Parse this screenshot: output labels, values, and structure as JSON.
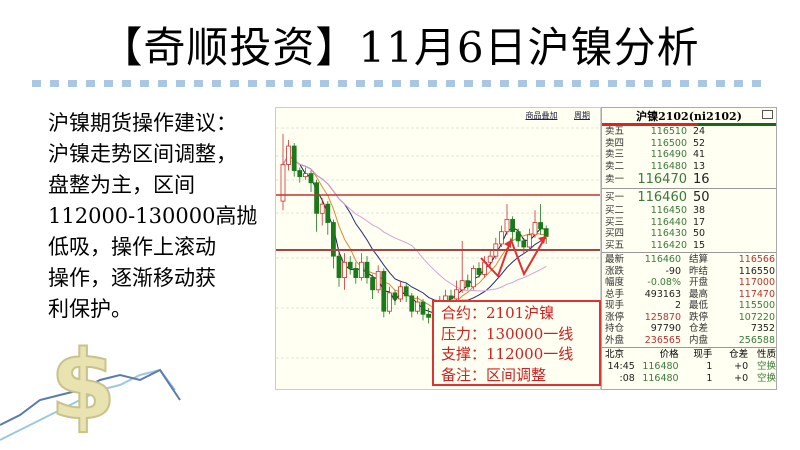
{
  "title": "【奇顺投资】11月6日沪镍分析",
  "advice": [
    "沪镍期货操作建议：",
    "沪镍走势区间调整，",
    "盘整为主，区间",
    "112000-130000高抛",
    "低吸，操作上滚动",
    "操作，逐渐移动获",
    "利保护。"
  ],
  "chart": {
    "links": [
      "商品叠加",
      "周期"
    ],
    "resistance": 130000,
    "support": 112000,
    "colors": {
      "up": "#d03030",
      "down": "#1a7a1a",
      "line": "#c83030"
    },
    "candles": [
      [
        128000,
        150000,
        125000,
        140000
      ],
      [
        140000,
        148000,
        138000,
        146000
      ],
      [
        146000,
        147000,
        136000,
        138000
      ],
      [
        138000,
        139000,
        134000,
        136000
      ],
      [
        136000,
        139000,
        135000,
        137000
      ],
      [
        137000,
        138000,
        131000,
        134000
      ],
      [
        134000,
        135000,
        118000,
        124000
      ],
      [
        124000,
        129000,
        120000,
        127000
      ],
      [
        127000,
        128000,
        117000,
        121000
      ],
      [
        121000,
        122000,
        106000,
        110000
      ],
      [
        110000,
        111000,
        100000,
        103000
      ],
      [
        103000,
        111000,
        99000,
        108000
      ],
      [
        108000,
        110000,
        104000,
        106000
      ],
      [
        106000,
        108000,
        101000,
        103000
      ],
      [
        103000,
        111000,
        102000,
        108000
      ],
      [
        108000,
        110000,
        101000,
        103000
      ],
      [
        103000,
        104000,
        96000,
        99000
      ],
      [
        99000,
        107000,
        98000,
        105000
      ],
      [
        105000,
        106000,
        90000,
        92000
      ],
      [
        92000,
        100000,
        91000,
        98000
      ],
      [
        98000,
        99000,
        94000,
        96000
      ],
      [
        96000,
        102000,
        95000,
        100000
      ],
      [
        100000,
        101000,
        95000,
        97000
      ],
      [
        97000,
        98000,
        90000,
        92000
      ],
      [
        92000,
        97000,
        91000,
        95000
      ],
      [
        95000,
        96000,
        89000,
        91000
      ],
      [
        91000,
        93000,
        88000,
        90000
      ],
      [
        90000,
        95000,
        89000,
        93000
      ],
      [
        93000,
        97000,
        92000,
        95000
      ],
      [
        95000,
        99000,
        94000,
        97000
      ],
      [
        97000,
        99000,
        94000,
        96000
      ],
      [
        96000,
        102000,
        95000,
        99000
      ],
      [
        99000,
        115000,
        98000,
        102000
      ],
      [
        102000,
        104000,
        99000,
        100000
      ],
      [
        100000,
        107000,
        99000,
        106000
      ],
      [
        106000,
        108000,
        103000,
        104000
      ],
      [
        104000,
        110000,
        103000,
        108000
      ],
      [
        108000,
        112000,
        106000,
        110000
      ],
      [
        110000,
        116000,
        109000,
        114000
      ],
      [
        114000,
        120000,
        113000,
        118000
      ],
      [
        118000,
        127000,
        117000,
        122000
      ],
      [
        122000,
        123000,
        115000,
        118000
      ],
      [
        118000,
        119000,
        113000,
        115000
      ],
      [
        115000,
        116000,
        111000,
        113000
      ],
      [
        113000,
        119000,
        112000,
        117000
      ],
      [
        117000,
        125000,
        116000,
        121000
      ],
      [
        121000,
        127000,
        117000,
        119000
      ],
      [
        119000,
        120000,
        114000,
        116460
      ]
    ],
    "note": {
      "contract": "合约：2101沪镍",
      "pressure": "压力：130000一线",
      "support": "支撑：112000一线",
      "remark": "备注：区间调整"
    }
  },
  "quote": {
    "title": "沪镍2102(ni2102)",
    "asks": [
      {
        "label": "卖五",
        "price": "116510",
        "vol": "24"
      },
      {
        "label": "卖四",
        "price": "116500",
        "vol": "52"
      },
      {
        "label": "卖三",
        "price": "116490",
        "vol": "41"
      },
      {
        "label": "卖二",
        "price": "116480",
        "vol": "13"
      },
      {
        "label": "卖一",
        "price": "116470",
        "vol": "16"
      }
    ],
    "bids": [
      {
        "label": "买一",
        "price": "116460",
        "vol": "50"
      },
      {
        "label": "买二",
        "price": "116450",
        "vol": "38"
      },
      {
        "label": "买三",
        "price": "116440",
        "vol": "17"
      },
      {
        "label": "买四",
        "price": "116430",
        "vol": "50"
      },
      {
        "label": "买五",
        "price": "116420",
        "vol": "15"
      }
    ],
    "stats": [
      {
        "l1": "最新",
        "v1": "116460",
        "l2": "结算",
        "v2": "116566"
      },
      {
        "l1": "涨跌",
        "v1": "-90",
        "l2": "昨结",
        "v2": "116550"
      },
      {
        "l1": "幅度",
        "v1": "-0.08%",
        "l2": "开盘",
        "v2": "117000"
      },
      {
        "l1": "总手",
        "v1": "493163",
        "l2": "最高",
        "v2": "117470"
      },
      {
        "l1": "现手",
        "v1": "2",
        "l2": "最低",
        "v2": "115500"
      },
      {
        "l1": "涨停",
        "v1": "125870",
        "l2": "跌停",
        "v2": "107220"
      },
      {
        "l1": "持仓",
        "v1": "97790",
        "l2": "仓差",
        "v2": "7352"
      },
      {
        "l1": "外盘",
        "v1": "236565",
        "l2": "内盘",
        "v2": "256588"
      }
    ],
    "trade_header": [
      "北京",
      "价格",
      "现手",
      "仓差",
      "性质"
    ],
    "trades": [
      {
        "time": "14:45",
        "price": "116480",
        "vol": "1",
        "oi": "+0",
        "type": "空换"
      },
      {
        "time": ":08",
        "price": "116480",
        "vol": "1",
        "oi": "+0",
        "type": "空换"
      }
    ]
  }
}
